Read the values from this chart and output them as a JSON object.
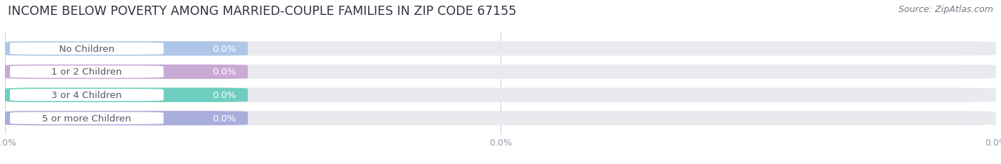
{
  "title": "INCOME BELOW POVERTY AMONG MARRIED-COUPLE FAMILIES IN ZIP CODE 67155",
  "source": "Source: ZipAtlas.com",
  "categories": [
    "No Children",
    "1 or 2 Children",
    "3 or 4 Children",
    "5 or more Children"
  ],
  "values": [
    0.0,
    0.0,
    0.0,
    0.0
  ],
  "bar_colors": [
    "#aec6e8",
    "#c9aad4",
    "#6ecec0",
    "#a9aedd"
  ],
  "bar_bg_color": "#eaeaee",
  "background_color": "#ffffff",
  "xlim": [
    0,
    1
  ],
  "title_fontsize": 12.5,
  "label_fontsize": 9.5,
  "tick_fontsize": 9,
  "source_fontsize": 9,
  "grid_color": "#d0d0da",
  "tick_label": "0.0%"
}
